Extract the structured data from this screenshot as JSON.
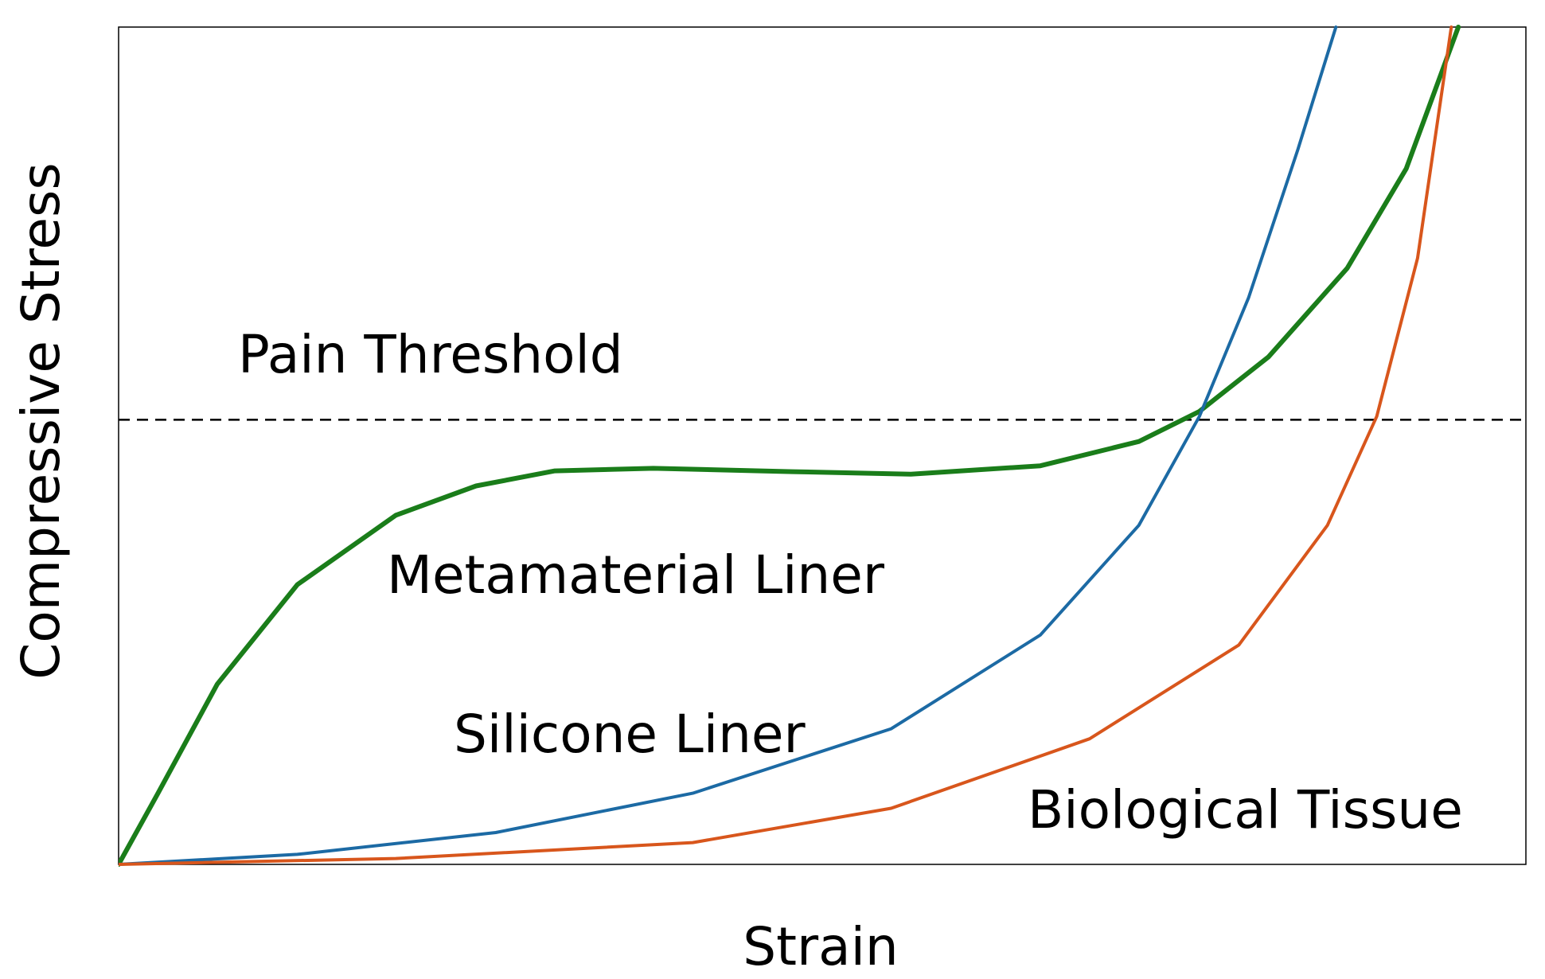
{
  "chart_data": {
    "type": "line",
    "xlabel": "Strain",
    "ylabel": "Compressive Stress",
    "xlim": [
      0,
      100
    ],
    "ylim": [
      0,
      100
    ],
    "threshold": {
      "label": "Pain Threshold",
      "value": 53.1,
      "color": "#000000"
    },
    "series": [
      {
        "name": "Metamaterial Liner",
        "color": "#1a7d1a",
        "x": [
          0,
          2.8,
          7.0,
          12.7,
          19.7,
          25.4,
          31.0,
          38.0,
          47.9,
          56.3,
          65.5,
          72.5,
          76.8,
          81.7,
          87.3,
          91.5,
          95.2
        ],
        "values": [
          0,
          8.5,
          21.5,
          33.4,
          41.7,
          45.2,
          47.0,
          47.3,
          46.9,
          46.6,
          47.6,
          50.5,
          54.1,
          60.6,
          71.2,
          83.1,
          100
        ]
      },
      {
        "name": "Silicone Liner",
        "color": "#1c6aa4",
        "x": [
          0,
          12.7,
          26.8,
          40.8,
          54.9,
          65.5,
          72.5,
          76.8,
          80.3,
          83.8,
          86.5
        ],
        "values": [
          0,
          1.2,
          3.8,
          8.5,
          16.2,
          27.4,
          40.5,
          53.5,
          67.7,
          85.4,
          100
        ]
      },
      {
        "name": "Biological Tissue",
        "color": "#d8561c",
        "x": [
          0,
          19.7,
          40.8,
          54.9,
          69.0,
          79.6,
          85.9,
          89.4,
          92.3,
          94.7
        ],
        "values": [
          0,
          0.7,
          2.6,
          6.7,
          15.0,
          26.2,
          40.5,
          53.5,
          72.4,
          100
        ]
      }
    ]
  }
}
